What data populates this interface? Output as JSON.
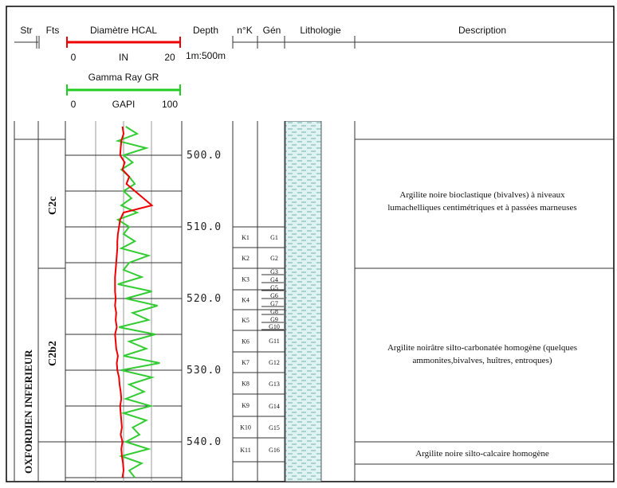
{
  "header": {
    "columns": [
      "Str",
      "Fts",
      "Diamètre HCAL",
      "Depth",
      "n°K",
      "Gén",
      "Lithologie",
      "Description"
    ],
    "hcal": {
      "min": "0",
      "unit": "IN",
      "max": "20",
      "lim": [
        0,
        20
      ]
    },
    "scale": "1m:500m",
    "gr": {
      "title": "Gamma Ray GR",
      "min": "0",
      "unit": "GAPI",
      "max": "100",
      "lim": [
        0,
        100
      ]
    }
  },
  "stage": "OXFORDIEN INFERIEUR",
  "facies": [
    "C2c",
    "C2b2"
  ],
  "depth_ticks": [
    {
      "value": 500,
      "label": "500.0"
    },
    {
      "value": 510,
      "label": "510.0"
    },
    {
      "value": 520,
      "label": "520.0"
    },
    {
      "value": 530,
      "label": "530.0"
    },
    {
      "value": 540,
      "label": "540.0"
    }
  ],
  "units_k": [
    "K1",
    "K2",
    "K3",
    "K4",
    "K5",
    "K6",
    "K7",
    "K8",
    "K9",
    "K10",
    "K11"
  ],
  "units_g": [
    "G1",
    "G2",
    "G3",
    "G4",
    "G5",
    "G6",
    "G7",
    "G8",
    "G9",
    "G10",
    "G11",
    "G12",
    "G13",
    "G14",
    "G15",
    "G16"
  ],
  "descriptions": [
    [
      "Argilite noire bioclastique (bivalves) à niveaux",
      "lumachelliques centimétriques et à passées marneuses"
    ],
    [
      "Argilite noirâtre silto-carbonatée homogène (quelques",
      "ammonites,bivalves, huîtres, entroques)"
    ],
    [
      "Argilite noire silto-calcaire homogène"
    ]
  ],
  "curves": {
    "depth": [
      496,
      497,
      498,
      499,
      500,
      501,
      502,
      503,
      504,
      505,
      506,
      507,
      508,
      509,
      510,
      511,
      512,
      513,
      514,
      515,
      516,
      517,
      518,
      519,
      520,
      521,
      522,
      523,
      524,
      525,
      526,
      527,
      528,
      529,
      530,
      531,
      532,
      533,
      534,
      535,
      536,
      537,
      538,
      539,
      540,
      541,
      542,
      543,
      544,
      545
    ],
    "hcal": [
      9.8,
      10,
      9.6,
      9.5,
      9.4,
      10.2,
      9.8,
      11,
      10.5,
      12,
      13.5,
      15,
      10,
      9.4,
      9.2,
      9.0,
      8.9,
      8.9,
      8.8,
      8.7,
      8.6,
      8.5,
      8.5,
      8.5,
      8.6,
      8.5,
      8.7,
      8.6,
      8.8,
      8.5,
      8.6,
      8.7,
      9,
      8.8,
      8.9,
      9.2,
      9.3,
      9.5,
      9.6,
      9.4,
      9.5,
      9.6,
      9.7,
      9.5,
      9.8,
      9.6,
      9.7,
      9.9,
      10,
      9.8
    ],
    "gr": [
      52,
      62,
      45,
      70,
      50,
      58,
      48,
      55,
      60,
      50,
      57,
      48,
      62,
      45,
      55,
      50,
      60,
      48,
      72,
      55,
      50,
      66,
      45,
      75,
      52,
      80,
      58,
      72,
      46,
      78,
      55,
      70,
      50,
      82,
      48,
      75,
      55,
      68,
      52,
      74,
      50,
      70,
      58,
      64,
      52,
      72,
      48,
      66,
      55,
      60
    ]
  }
}
